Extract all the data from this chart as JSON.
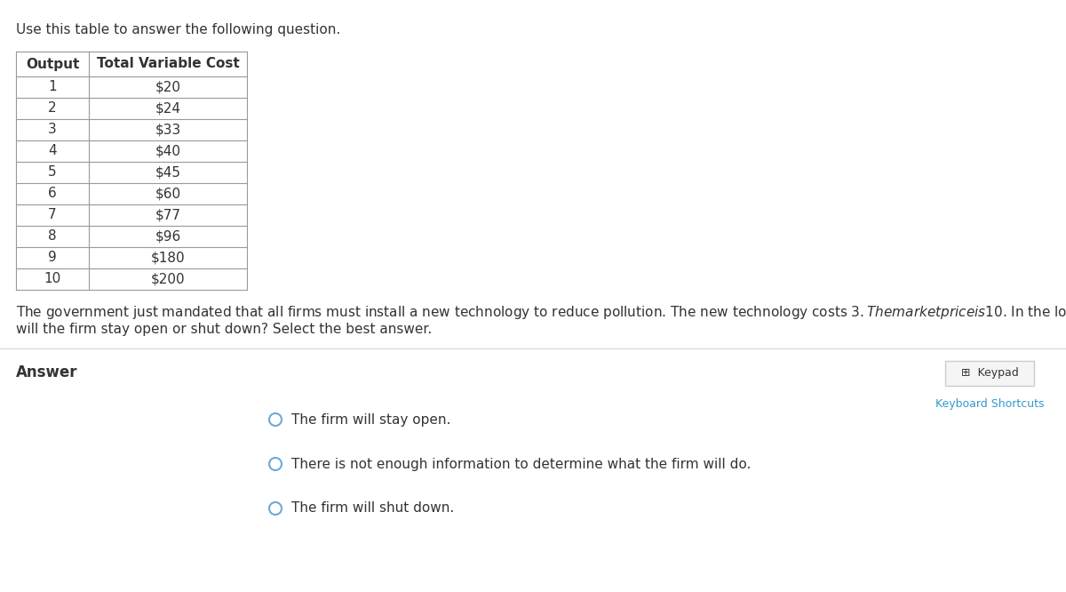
{
  "title_text": "Use this table to answer the following question.",
  "table_headers": [
    "Output",
    "Total Variable Cost"
  ],
  "table_rows": [
    [
      "1",
      "$20"
    ],
    [
      "2",
      "$24"
    ],
    [
      "3",
      "$33"
    ],
    [
      "4",
      "$40"
    ],
    [
      "5",
      "$45"
    ],
    [
      "6",
      "$60"
    ],
    [
      "7",
      "$77"
    ],
    [
      "8",
      "$96"
    ],
    [
      "9",
      "$180"
    ],
    [
      "10",
      "$200"
    ]
  ],
  "question_text": "The government just mandated that all firms must install a new technology to reduce pollution. The new technology costs $3. The market price is $10. In the long run,\nwill the firm stay open or shut down? Select the best answer.",
  "answer_label": "Answer",
  "options": [
    "The firm will stay open.",
    "There is not enough information to determine what the firm will do.",
    "The firm will shut down."
  ],
  "keypad_label": "Keypad",
  "keyboard_shortcuts_label": "Keyboard Shortcuts",
  "bg_color": "#ffffff",
  "table_border_color": "#999999",
  "header_bg_color": "#ffffff",
  "text_color": "#333333",
  "radio_color": "#6aabdb",
  "keypad_border_color": "#cccccc",
  "keyboard_shortcuts_color": "#3399cc",
  "divider_color": "#dddddd",
  "title_fontsize": 11,
  "table_fontsize": 11,
  "question_fontsize": 11,
  "answer_fontsize": 12,
  "option_fontsize": 11
}
